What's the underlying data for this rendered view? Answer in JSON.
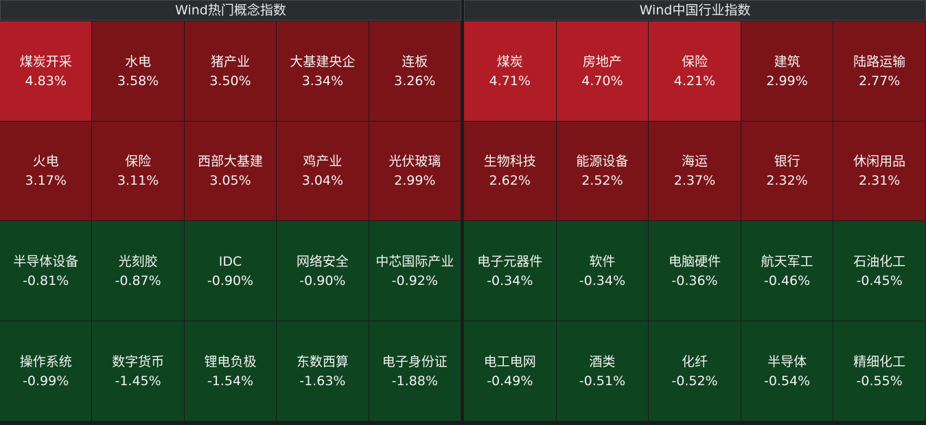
{
  "panels": [
    {
      "title": "Wind热门概念指数",
      "rows": [
        [
          {
            "name": "煤炭开采",
            "change": "4.83%",
            "color": "#b01d26"
          },
          {
            "name": "水电",
            "change": "3.58%",
            "color": "#7a1419"
          },
          {
            "name": "猪产业",
            "change": "3.50%",
            "color": "#7a1419"
          },
          {
            "name": "大基建央企",
            "change": "3.34%",
            "color": "#7a1419"
          },
          {
            "name": "连板",
            "change": "3.26%",
            "color": "#7a1419"
          }
        ],
        [
          {
            "name": "火电",
            "change": "3.17%",
            "color": "#7a1419"
          },
          {
            "name": "保险",
            "change": "3.11%",
            "color": "#7a1419"
          },
          {
            "name": "西部大基建",
            "change": "3.05%",
            "color": "#7a1419"
          },
          {
            "name": "鸡产业",
            "change": "3.04%",
            "color": "#7a1419"
          },
          {
            "name": "光伏玻璃",
            "change": "2.99%",
            "color": "#7a1419"
          }
        ],
        [
          {
            "name": "半导体设备",
            "change": "-0.81%",
            "color": "#0f4420"
          },
          {
            "name": "光刻胶",
            "change": "-0.87%",
            "color": "#0f4420"
          },
          {
            "name": "IDC",
            "change": "-0.90%",
            "color": "#0f4420"
          },
          {
            "name": "网络安全",
            "change": "-0.90%",
            "color": "#0f4420"
          },
          {
            "name": "中芯国际产业",
            "change": "-0.92%",
            "color": "#0f4420"
          }
        ],
        [
          {
            "name": "操作系统",
            "change": "-0.99%",
            "color": "#0f4420"
          },
          {
            "name": "数字货币",
            "change": "-1.45%",
            "color": "#0f4420"
          },
          {
            "name": "锂电负极",
            "change": "-1.54%",
            "color": "#0f4420"
          },
          {
            "name": "东数西算",
            "change": "-1.63%",
            "color": "#0f4420"
          },
          {
            "name": "电子身份证",
            "change": "-1.88%",
            "color": "#0f4420"
          }
        ]
      ]
    },
    {
      "title": "Wind中国行业指数",
      "rows": [
        [
          {
            "name": "煤炭",
            "change": "4.71%",
            "color": "#b01d26"
          },
          {
            "name": "房地产",
            "change": "4.70%",
            "color": "#b01d26"
          },
          {
            "name": "保险",
            "change": "4.21%",
            "color": "#b01d26"
          },
          {
            "name": "建筑",
            "change": "2.99%",
            "color": "#7a1419"
          },
          {
            "name": "陆路运输",
            "change": "2.77%",
            "color": "#7a1419"
          }
        ],
        [
          {
            "name": "生物科技",
            "change": "2.62%",
            "color": "#7a1419"
          },
          {
            "name": "能源设备",
            "change": "2.52%",
            "color": "#7a1419"
          },
          {
            "name": "海运",
            "change": "2.37%",
            "color": "#7a1419"
          },
          {
            "name": "银行",
            "change": "2.32%",
            "color": "#7a1419"
          },
          {
            "name": "休闲用品",
            "change": "2.31%",
            "color": "#7a1419"
          }
        ],
        [
          {
            "name": "电子元器件",
            "change": "-0.34%",
            "color": "#0f4420"
          },
          {
            "name": "软件",
            "change": "-0.34%",
            "color": "#0f4420"
          },
          {
            "name": "电脑硬件",
            "change": "-0.36%",
            "color": "#0f4420"
          },
          {
            "name": "航天军工",
            "change": "-0.46%",
            "color": "#0f4420"
          },
          {
            "name": "石油化工",
            "change": "-0.45%",
            "color": "#0f4420"
          }
        ],
        [
          {
            "name": "电工电网",
            "change": "-0.49%",
            "color": "#0f4420"
          },
          {
            "name": "酒类",
            "change": "-0.51%",
            "color": "#0f4420"
          },
          {
            "name": "化纤",
            "change": "-0.52%",
            "color": "#0f4420"
          },
          {
            "name": "半导体",
            "change": "-0.54%",
            "color": "#0f4420"
          },
          {
            "name": "精细化工",
            "change": "-0.55%",
            "color": "#0f4420"
          }
        ]
      ]
    }
  ]
}
